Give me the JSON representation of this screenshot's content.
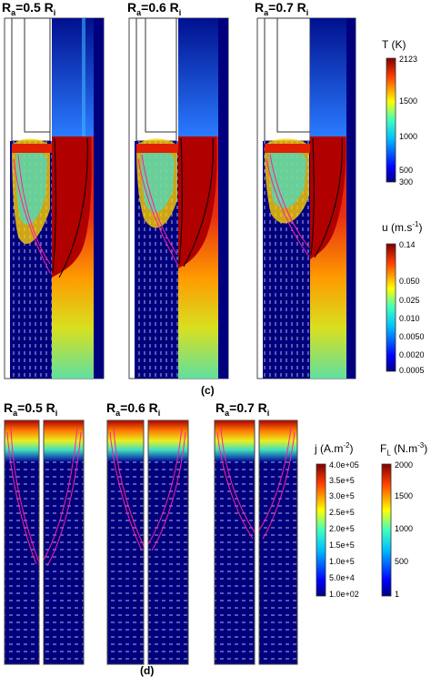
{
  "section_c": {
    "caption": "(c)",
    "cases": [
      {
        "ra_prefix": "R",
        "ra_sub": "a",
        "ra_eq": "=0.5 R",
        "ri_sub": "i"
      },
      {
        "ra_prefix": "R",
        "ra_sub": "a",
        "ra_eq": "=0.6 R",
        "ri_sub": "i"
      },
      {
        "ra_prefix": "R",
        "ra_sub": "a",
        "ra_eq": "=0.7 R",
        "ri_sub": "i"
      }
    ],
    "temperature_colorbar": {
      "title": "T (K)",
      "ticks": [
        "2123",
        "1500",
        "1000",
        "500",
        "300"
      ]
    },
    "velocity_colorbar": {
      "title_prefix": "u (m.s",
      "title_sup": "-1",
      "title_suffix": ")",
      "ticks": [
        "0.14",
        "0.050",
        "0.025",
        "0.010",
        "0.0050",
        "0.0020",
        "0.0005"
      ]
    }
  },
  "section_d": {
    "caption": "(d)",
    "cases": [
      {
        "ra_prefix": "R",
        "ra_sub": "a",
        "ra_eq": "=0.5 R",
        "ri_sub": "i"
      },
      {
        "ra_prefix": "R",
        "ra_sub": "a",
        "ra_eq": "=0.6 R",
        "ri_sub": "i"
      },
      {
        "ra_prefix": "R",
        "ra_sub": "a",
        "ra_eq": "=0.7 R",
        "ri_sub": "i"
      }
    ],
    "current_colorbar": {
      "title_prefix": "j (A.m",
      "title_sup": "-2",
      "title_suffix": ")",
      "ticks": [
        "4.0e+05",
        "3.5e+5",
        "3.0e+5",
        "2.5e+5",
        "2.0e+5",
        "1.5e+5",
        "1.0e+5",
        "5.0e+4",
        "1.0e+02"
      ]
    },
    "force_colorbar": {
      "title_prefix": "F",
      "title_sub": "L",
      "title_mid": " (N.m",
      "title_sup": "-3",
      "title_suffix": ")",
      "ticks": [
        "2000",
        "1500",
        "1000",
        "500",
        "1"
      ]
    }
  },
  "colors": {
    "jet_dark_blue": "#00007f",
    "jet_red": "#b40000",
    "streamline_magenta": "#ff1fa0"
  }
}
